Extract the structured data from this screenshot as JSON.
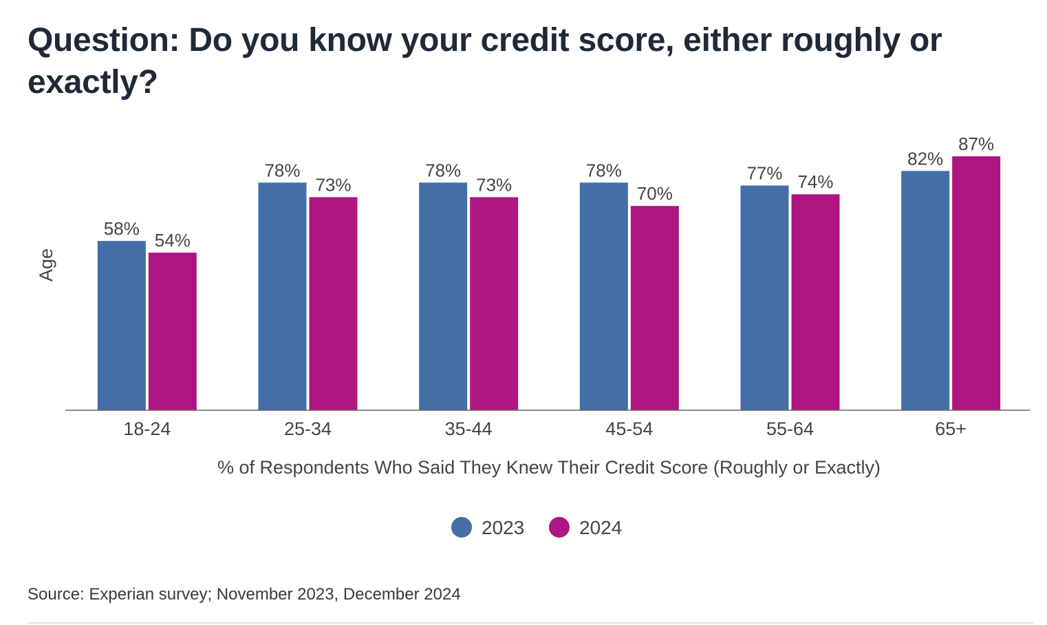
{
  "title": "Question: Do you know your credit score, either roughly or exactly?",
  "source": "Source: Experian survey; November 2023, December 2024",
  "chart_data": {
    "type": "bar",
    "title": "Question: Do you know your credit score, either roughly or exactly?",
    "xlabel": "% of Respondents Who Said They Knew Their Credit Score (Roughly or Exactly)",
    "ylabel": "Age",
    "categories": [
      "18-24",
      "25-34",
      "35-44",
      "45-54",
      "55-64",
      "65+"
    ],
    "series": [
      {
        "name": "2023",
        "color": "#436ea8",
        "values": [
          58,
          78,
          78,
          78,
          77,
          82
        ]
      },
      {
        "name": "2024",
        "color": "#ae1681",
        "values": [
          54,
          73,
          73,
          70,
          74,
          87
        ]
      }
    ],
    "value_suffix": "%",
    "ylim": [
      0,
      100
    ],
    "grid": false,
    "legend_position": "bottom-center"
  }
}
